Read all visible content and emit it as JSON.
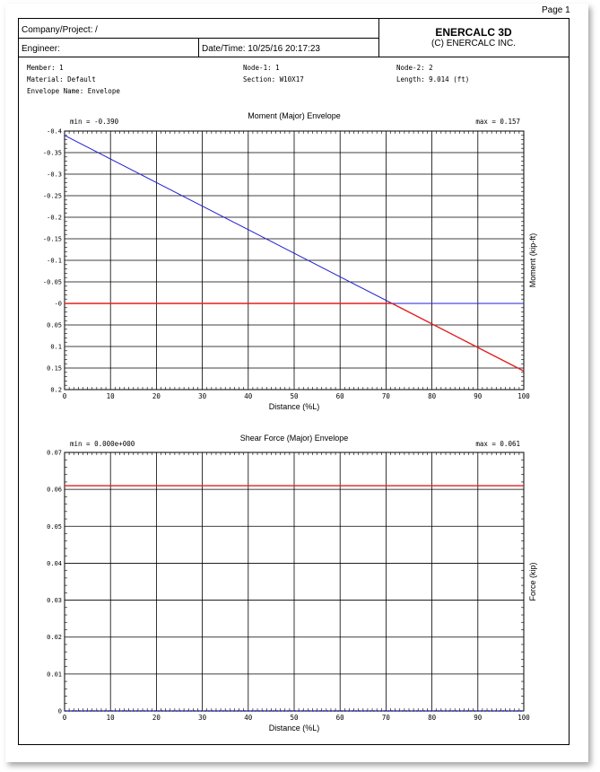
{
  "page": {
    "label": "Page 1"
  },
  "header": {
    "company_label": "Company/Project:",
    "company_value": "/",
    "engineer_label": "Engineer:",
    "datetime": "Date/Time: 10/25/16 20:17:23",
    "brand": "ENERCALC 3D",
    "brand_sub": "(C) ENERCALC INC."
  },
  "info": {
    "member": "Member: 1",
    "material": "Material: Default",
    "envelope": "Envelope Name: Envelope",
    "node1": "Node-1: 1",
    "section": "Section: W10X17",
    "node2": "Node-2: 2",
    "length": "Length: 9.014 (ft)"
  },
  "colors": {
    "upper": "#2020d0",
    "lower": "#e02020",
    "grid": "#000000"
  },
  "chart_data": [
    {
      "type": "line",
      "title": "Moment (Major) Envelope",
      "min_label": "min = -0.390",
      "max_label": "max = 0.157",
      "xlabel": "Distance (%L)",
      "ylabel": "Moment (kip-ft)",
      "xlim": [
        0,
        100
      ],
      "ylim": [
        -0.4,
        0.2
      ],
      "y_inverted": true,
      "x_ticks": [
        0,
        10,
        20,
        30,
        40,
        50,
        60,
        70,
        80,
        90,
        100
      ],
      "x_tick_labels": [
        "0",
        "10",
        "20",
        "30",
        "40",
        "50",
        "60",
        "70",
        "80",
        "90",
        "100"
      ],
      "y_ticks": [
        -0.4,
        -0.35,
        -0.3,
        -0.25,
        -0.2,
        -0.15,
        -0.1,
        -0.05,
        0,
        0.05,
        0.1,
        0.15,
        0.2
      ],
      "y_tick_labels": [
        "-0.4",
        "-0.35",
        "-0.3",
        "-0.25",
        "-0.2",
        "-0.15",
        "-0.1",
        "-0.05",
        "-0",
        "0.05",
        "0.1",
        "0.15",
        "0.2"
      ],
      "grid": true,
      "series": [
        {
          "color": "#2020d0",
          "x": [
            0,
            71.3,
            100
          ],
          "y": [
            -0.39,
            0,
            0
          ]
        },
        {
          "color": "#e02020",
          "x": [
            0,
            71.3,
            100
          ],
          "y": [
            0,
            0,
            0.157
          ]
        }
      ]
    },
    {
      "type": "line",
      "title": "Shear Force (Major) Envelope",
      "min_label": "min = 0.000e+000",
      "max_label": "max = 0.061",
      "xlabel": "Distance (%L)",
      "ylabel": "Force (kip)",
      "xlim": [
        0,
        100
      ],
      "ylim": [
        0,
        0.07
      ],
      "y_inverted": false,
      "x_ticks": [
        0,
        10,
        20,
        30,
        40,
        50,
        60,
        70,
        80,
        90,
        100
      ],
      "x_tick_labels": [
        "0",
        "10",
        "20",
        "30",
        "40",
        "50",
        "60",
        "70",
        "80",
        "90",
        "100"
      ],
      "y_ticks": [
        0,
        0.01,
        0.02,
        0.03,
        0.04,
        0.05,
        0.06,
        0.07
      ],
      "y_tick_labels": [
        "0",
        "0.01",
        "0.02",
        "0.03",
        "0.04",
        "0.05",
        "0.06",
        "0.07"
      ],
      "grid": true,
      "series": [
        {
          "color": "#e02020",
          "x": [
            0,
            100
          ],
          "y": [
            0.061,
            0.061
          ]
        },
        {
          "color": "#2020d0",
          "x": [
            0,
            100
          ],
          "y": [
            0,
            0
          ],
          "dashed": true
        }
      ]
    }
  ]
}
